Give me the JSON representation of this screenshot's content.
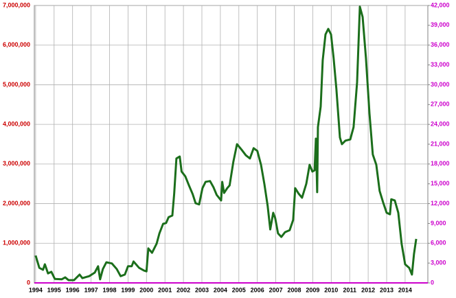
{
  "chart_data": {
    "type": "line",
    "x": [
      1994.0,
      1994.2,
      1994.4,
      1994.5,
      1994.67,
      1994.85,
      1995.04,
      1995.41,
      1995.6,
      1995.78,
      1996.08,
      1996.38,
      1996.53,
      1996.9,
      1997.2,
      1997.38,
      1997.49,
      1997.64,
      1997.83,
      1998.13,
      1998.39,
      1998.6,
      1998.83,
      1999.0,
      1999.2,
      1999.3,
      1999.6,
      1999.87,
      2000.0,
      2000.1,
      2000.3,
      2000.55,
      2000.7,
      2000.9,
      2001.06,
      2001.2,
      2001.4,
      2001.5,
      2001.62,
      2001.8,
      2001.9,
      2002.1,
      2002.3,
      2002.5,
      2002.66,
      2002.85,
      2003.03,
      2003.2,
      2003.44,
      2003.63,
      2003.8,
      2004.04,
      2004.1,
      2004.2,
      2004.37,
      2004.5,
      2004.7,
      2004.9,
      2005.15,
      2005.38,
      2005.6,
      2005.8,
      2006.0,
      2006.2,
      2006.38,
      2006.56,
      2006.7,
      2006.86,
      2006.97,
      2007.12,
      2007.3,
      2007.5,
      2007.75,
      2007.94,
      2008.05,
      2008.24,
      2008.42,
      2008.65,
      2008.83,
      2008.98,
      2009.1,
      2009.17,
      2009.24,
      2009.28,
      2009.43,
      2009.54,
      2009.69,
      2009.84,
      2009.99,
      2010.13,
      2010.28,
      2010.47,
      2010.58,
      2010.77,
      2011.03,
      2011.21,
      2011.4,
      2011.55,
      2011.7,
      2011.88,
      2012.07,
      2012.25,
      2012.44,
      2012.62,
      2012.81,
      2013.0,
      2013.18,
      2013.25,
      2013.44,
      2013.63,
      2013.81,
      2014.0,
      2014.22,
      2014.37,
      2014.48,
      2014.6
    ],
    "series": [
      {
        "color": "#1b6e1b",
        "values": [
          690000,
          380000,
          330000,
          470000,
          240000,
          280000,
          100000,
          90000,
          140000,
          70000,
          70000,
          210000,
          120000,
          170000,
          260000,
          420000,
          90000,
          350000,
          520000,
          490000,
          350000,
          170000,
          210000,
          420000,
          420000,
          540000,
          380000,
          310000,
          290000,
          870000,
          760000,
          990000,
          1250000,
          1490000,
          1510000,
          1660000,
          1700000,
          2250000,
          3140000,
          3190000,
          2810000,
          2690000,
          2460000,
          2240000,
          2010000,
          1980000,
          2390000,
          2550000,
          2570000,
          2410000,
          2220000,
          2080000,
          2550000,
          2270000,
          2390000,
          2460000,
          3050000,
          3500000,
          3360000,
          3220000,
          3140000,
          3400000,
          3330000,
          2980000,
          2500000,
          1940000,
          1350000,
          1770000,
          1630000,
          1250000,
          1160000,
          1280000,
          1330000,
          1590000,
          2390000,
          2250000,
          2150000,
          2500000,
          2980000,
          2810000,
          2840000,
          3640000,
          2290000,
          3930000,
          4450000,
          5620000,
          6270000,
          6410000,
          6270000,
          5670000,
          4890000,
          3670000,
          3500000,
          3590000,
          3620000,
          3930000,
          5060000,
          6970000,
          6710000,
          5670000,
          4280000,
          3240000,
          2980000,
          2320000,
          2030000,
          1770000,
          1730000,
          2110000,
          2080000,
          1770000,
          990000,
          470000,
          380000,
          210000,
          730000,
          1110000
        ]
      }
    ],
    "xlim": [
      1993.93,
      2015.23
    ],
    "xticks": [
      1994,
      1995,
      1996,
      1997,
      1998,
      1999,
      2000,
      2001,
      2002,
      2003,
      2004,
      2005,
      2006,
      2007,
      2008,
      2009,
      2010,
      2011,
      2012,
      2013,
      2014
    ],
    "ylim": [
      0,
      7000000
    ],
    "yticks": [
      0,
      {
        "value": 1000000,
        "label": "1,000,000"
      },
      {
        "value": 2000000,
        "label": "2,000,000"
      },
      {
        "value": 3000000,
        "label": "3,000,000"
      },
      {
        "value": 4000000,
        "label": "4,000,000"
      },
      {
        "value": 5000000,
        "label": "5,000,000"
      },
      {
        "value": 6000000,
        "label": "6,000,000"
      },
      {
        "value": 7000000,
        "label": "7,000,000"
      }
    ],
    "y2lim": [
      0,
      42000
    ],
    "y2ticks": [
      0,
      {
        "value": 3000,
        "label": "3,000"
      },
      {
        "value": 6000,
        "label": "6,000"
      },
      {
        "value": 9000,
        "label": "9,000"
      },
      {
        "value": 12000,
        "label": "12,000"
      },
      {
        "value": 15000,
        "label": "15,000"
      },
      {
        "value": 18000,
        "label": "18,000"
      },
      {
        "value": 21000,
        "label": "21,000"
      },
      {
        "value": 24000,
        "label": "24,000"
      },
      {
        "value": 27000,
        "label": "27,000"
      },
      {
        "value": 30000,
        "label": "30,000"
      },
      {
        "value": 33000,
        "label": "33,000"
      },
      {
        "value": 36000,
        "label": "36,000"
      },
      {
        "value": 39000,
        "label": "39,000"
      },
      {
        "value": 42000,
        "label": "42,000"
      }
    ],
    "yaxis_color": "#cc0000",
    "y2axis_color": "#cc00cc",
    "grid": true
  }
}
